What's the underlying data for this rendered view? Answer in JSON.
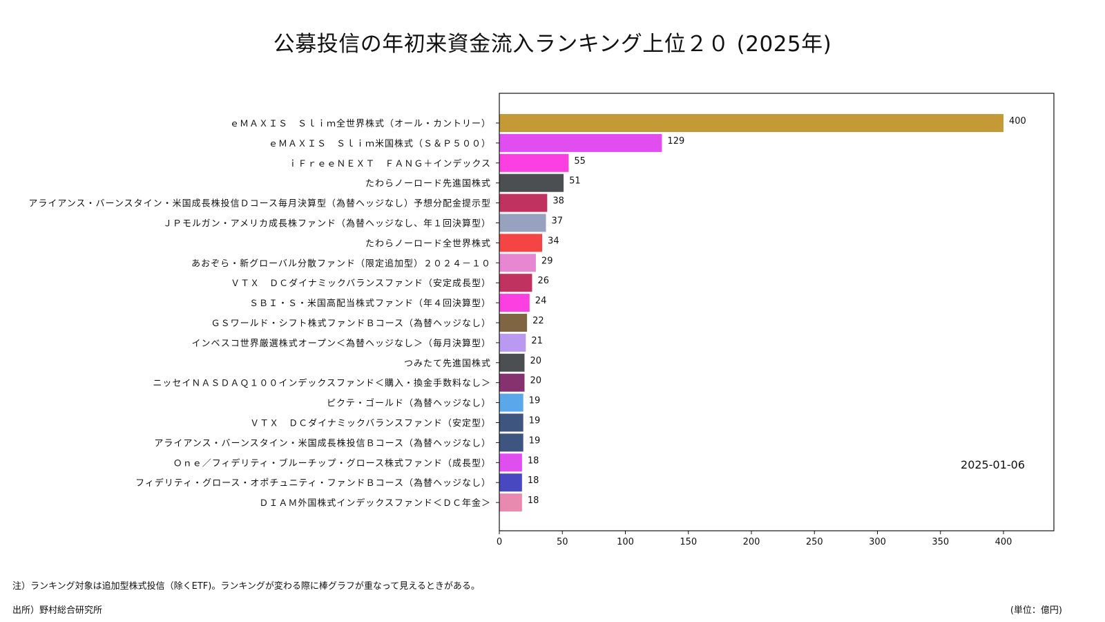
{
  "title": "公募投信の年初来資金流入ランキング上位２０ (2025年)",
  "note": "注）ランキング対象は追加型株式投信（除くETF)。ランキングが変わる際に棒グラフが重なって見えるときがある。",
  "source": "出所）野村総合研究所",
  "unit": "(単位：億円)",
  "chart_data": {
    "type": "bar",
    "orientation": "horizontal",
    "title": "公募投信の年初来資金流入ランキング上位２０ (2025年)",
    "date_label": "2025-01-06",
    "xlim": [
      0,
      440
    ],
    "xticks": [
      0,
      50,
      100,
      150,
      200,
      250,
      300,
      350,
      400
    ],
    "xtick_labels": [
      "0",
      "50",
      "100",
      "150",
      "200",
      "250",
      "300",
      "350",
      "400"
    ],
    "categories": [
      "ｅＭＡＸＩＳ　Ｓｌｉｍ全世界株式（オール・カントリー）",
      "ｅＭＡＸＩＳ　Ｓｌｉｍ米国株式（Ｓ＆Ｐ５００）",
      "ｉＦｒｅｅＮＥＸＴ　ＦＡＮＧ＋インデックス",
      "たわらノーロード先進国株式",
      "アライアンス・バーンスタイン・米国成長株投信Ｄコース毎月決算型（為替ヘッジなし）予想分配金提示型",
      "ＪＰモルガン・アメリカ成長株ファンド（為替ヘッジなし、年１回決算型）",
      "たわらノーロード全世界株式",
      "あおぞら・新グローバル分散ファンド（限定追加型）２０２４－１０",
      "ＶＴＸ　ＤＣダイナミックバランスファンド（安定成長型）",
      "ＳＢＩ・Ｓ・米国高配当株式ファンド（年４回決算型）",
      "ＧＳワールド・シフト株式ファンドＢコース（為替ヘッジなし）",
      "インベスコ世界厳選株式オープン＜為替ヘッジなし＞（毎月決算型）",
      "つみたて先進国株式",
      "ニッセイＮＡＳＤＡＱ１００インデックスファンド＜購入・換金手数料なし＞",
      "ピクテ・ゴールド（為替ヘッジなし）",
      "ＶＴＸ　ＤＣダイナミックバランスファンド（安定型）",
      "アライアンス・バーンスタイン・米国成長株投信Ｂコース（為替ヘッジなし）",
      "Ｏｎｅ／フィデリティ・ブルーチップ・グロース株式ファンド（成長型）",
      "フィデリティ・グロース・オポチュニティ・ファンドＢコース（為替ヘッジなし）",
      "ＤＩＡＭ外国株式インデックスファンド＜ＤＣ年金＞"
    ],
    "values": [
      400,
      129,
      55,
      51,
      38,
      37,
      34,
      29,
      26,
      24,
      22,
      21,
      20,
      20,
      19,
      19,
      19,
      18,
      18,
      18
    ],
    "value_labels": [
      "400",
      "129",
      "55",
      "51",
      "38",
      "37",
      "34",
      "29",
      "26",
      "24",
      "22",
      "21",
      "20",
      "20",
      "19",
      "19",
      "19",
      "18",
      "18",
      "18"
    ],
    "colors": [
      "#c49a36",
      "#e04ef0",
      "#fb3fe0",
      "#4b4f52",
      "#c0325f",
      "#97a3be",
      "#f54444",
      "#e787d2",
      "#c0325f",
      "#fb3fe0",
      "#7f6541",
      "#b99af0",
      "#4b4f52",
      "#86326f",
      "#5aa8ea",
      "#3e5580",
      "#3e5580",
      "#e04ef0",
      "#4848c0",
      "#e889b0"
    ],
    "xlabel": "",
    "ylabel": ""
  }
}
